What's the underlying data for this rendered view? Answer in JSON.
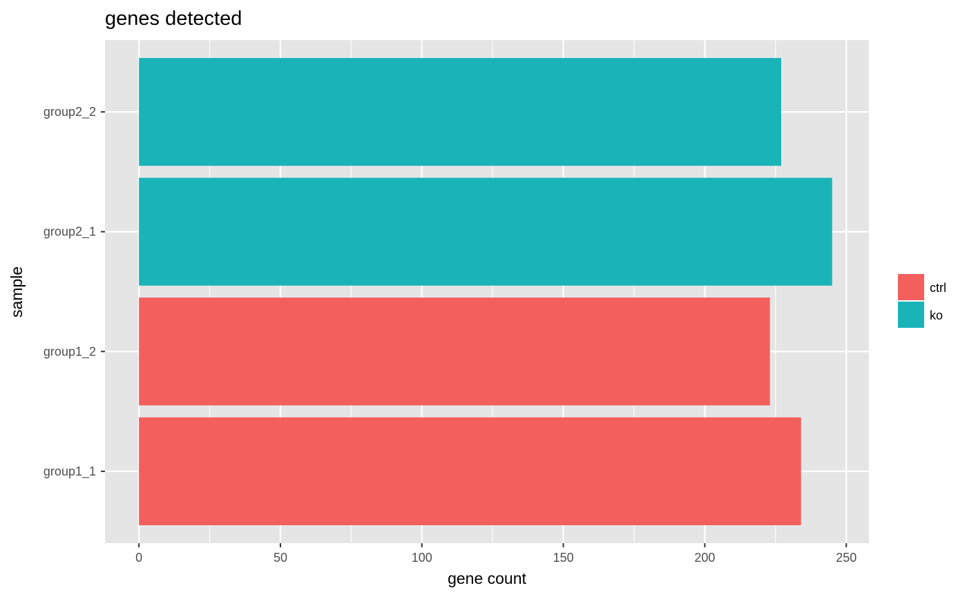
{
  "chart_data": {
    "type": "bar",
    "orientation": "horizontal",
    "title": "genes detected",
    "xlabel": "gene count",
    "ylabel": "sample",
    "xlim": [
      -12,
      258
    ],
    "xticks": [
      0,
      50,
      100,
      150,
      200,
      250
    ],
    "xtick_labels": [
      "0",
      "50",
      "100",
      "150",
      "200",
      "250"
    ],
    "categories": [
      "group1_1",
      "group1_2",
      "group2_1",
      "group2_2"
    ],
    "values": [
      234,
      223,
      245,
      227
    ],
    "groups": [
      "ctrl",
      "ctrl",
      "ko",
      "ko"
    ],
    "legend": {
      "placement": "right",
      "entries": [
        {
          "name": "ctrl",
          "color": "#F25F5C"
        },
        {
          "name": "ko",
          "color": "#1AB3B8"
        }
      ]
    },
    "colors": {
      "panel": "#E5E5E5",
      "grid": "#FFFFFF",
      "tick": "#333333"
    },
    "grid": true
  }
}
